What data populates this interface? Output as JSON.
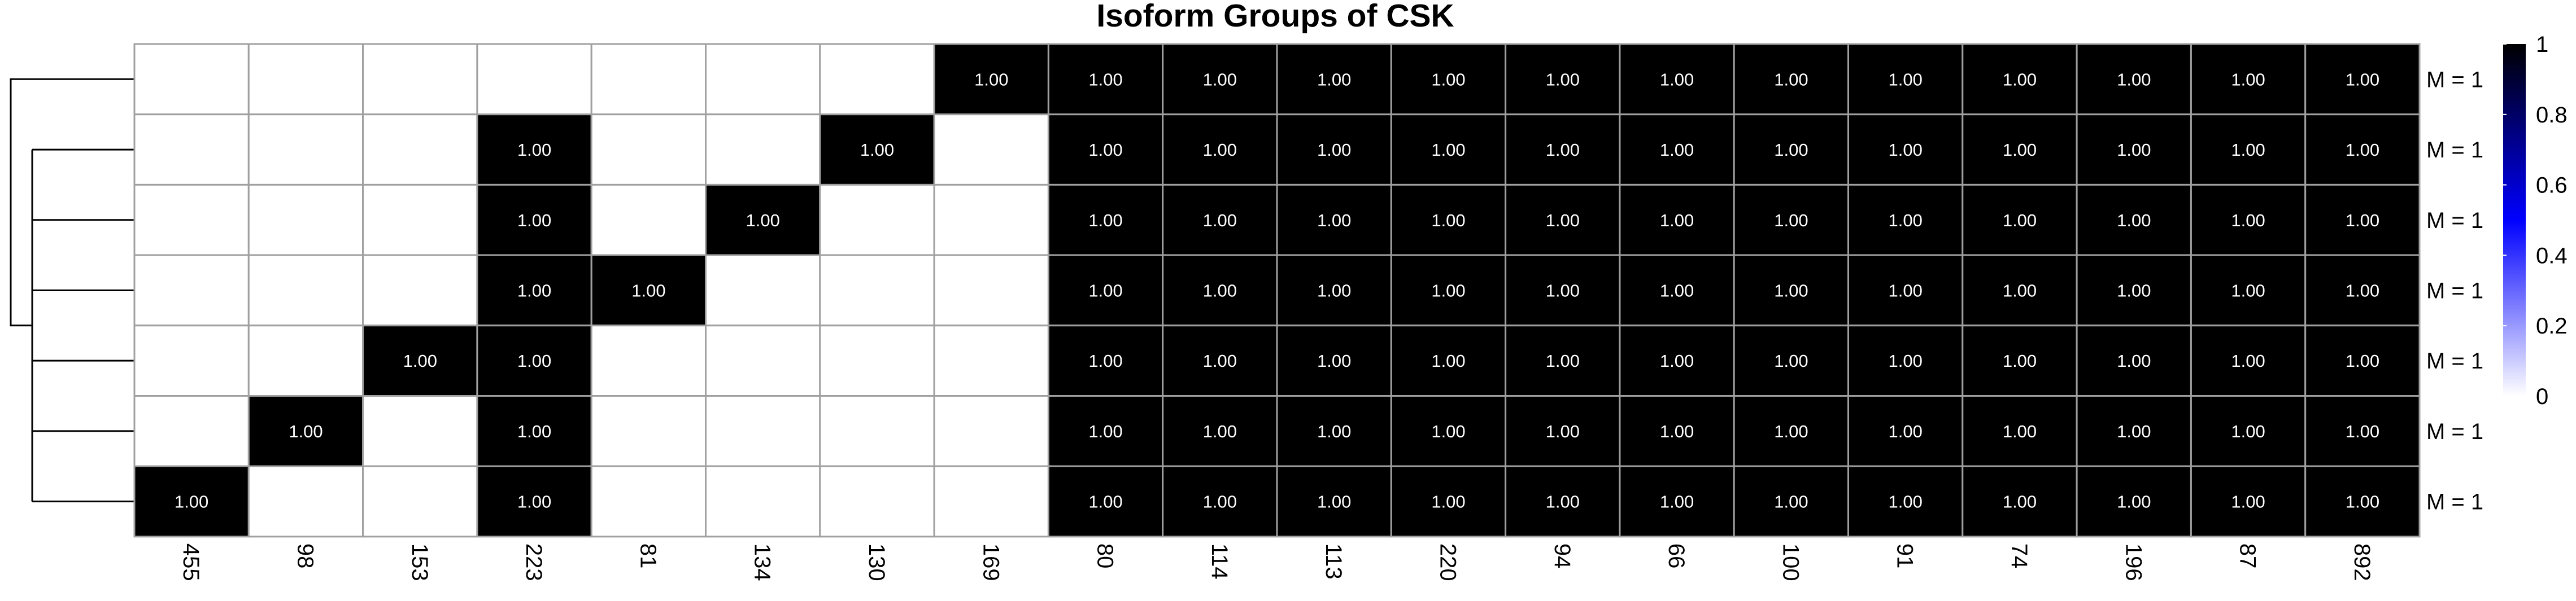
{
  "chart_data": {
    "type": "heatmap",
    "title": "Isoform Groups of CSK",
    "columns": [
      "455",
      "98",
      "153",
      "223",
      "81",
      "134",
      "130",
      "169",
      "80",
      "114",
      "113",
      "220",
      "94",
      "66",
      "100",
      "91",
      "74",
      "196",
      "87",
      "892"
    ],
    "rows": [
      "M = 1",
      "M = 1",
      "M = 1",
      "M = 1",
      "M = 1",
      "M = 1",
      "M = 1"
    ],
    "values": [
      [
        0,
        0,
        0,
        0,
        0,
        0,
        0,
        1,
        1,
        1,
        1,
        1,
        1,
        1,
        1,
        1,
        1,
        1,
        1,
        1
      ],
      [
        0,
        0,
        0,
        1,
        0,
        0,
        1,
        0,
        1,
        1,
        1,
        1,
        1,
        1,
        1,
        1,
        1,
        1,
        1,
        1
      ],
      [
        0,
        0,
        0,
        1,
        0,
        1,
        0,
        0,
        1,
        1,
        1,
        1,
        1,
        1,
        1,
        1,
        1,
        1,
        1,
        1
      ],
      [
        0,
        0,
        0,
        1,
        1,
        0,
        0,
        0,
        1,
        1,
        1,
        1,
        1,
        1,
        1,
        1,
        1,
        1,
        1,
        1
      ],
      [
        0,
        0,
        1,
        1,
        0,
        0,
        0,
        0,
        1,
        1,
        1,
        1,
        1,
        1,
        1,
        1,
        1,
        1,
        1,
        1
      ],
      [
        0,
        1,
        0,
        1,
        0,
        0,
        0,
        0,
        1,
        1,
        1,
        1,
        1,
        1,
        1,
        1,
        1,
        1,
        1,
        1
      ],
      [
        1,
        0,
        0,
        1,
        0,
        0,
        0,
        0,
        1,
        1,
        1,
        1,
        1,
        1,
        1,
        1,
        1,
        1,
        1,
        1
      ]
    ],
    "cell_label_format": "1.00",
    "legend": {
      "placement": "right",
      "ticks": [
        "1",
        "0.8",
        "0.6",
        "0.4",
        "0.2",
        "0"
      ],
      "range": [
        0,
        1
      ],
      "colors": [
        "#ffffff",
        "#0000ff",
        "#000000"
      ]
    },
    "cell_colors": {
      "filled": "#000000",
      "empty": "#ffffff",
      "border": "#a0a0a0"
    },
    "dendrogram": {
      "position": "left",
      "leaves": 7
    }
  }
}
